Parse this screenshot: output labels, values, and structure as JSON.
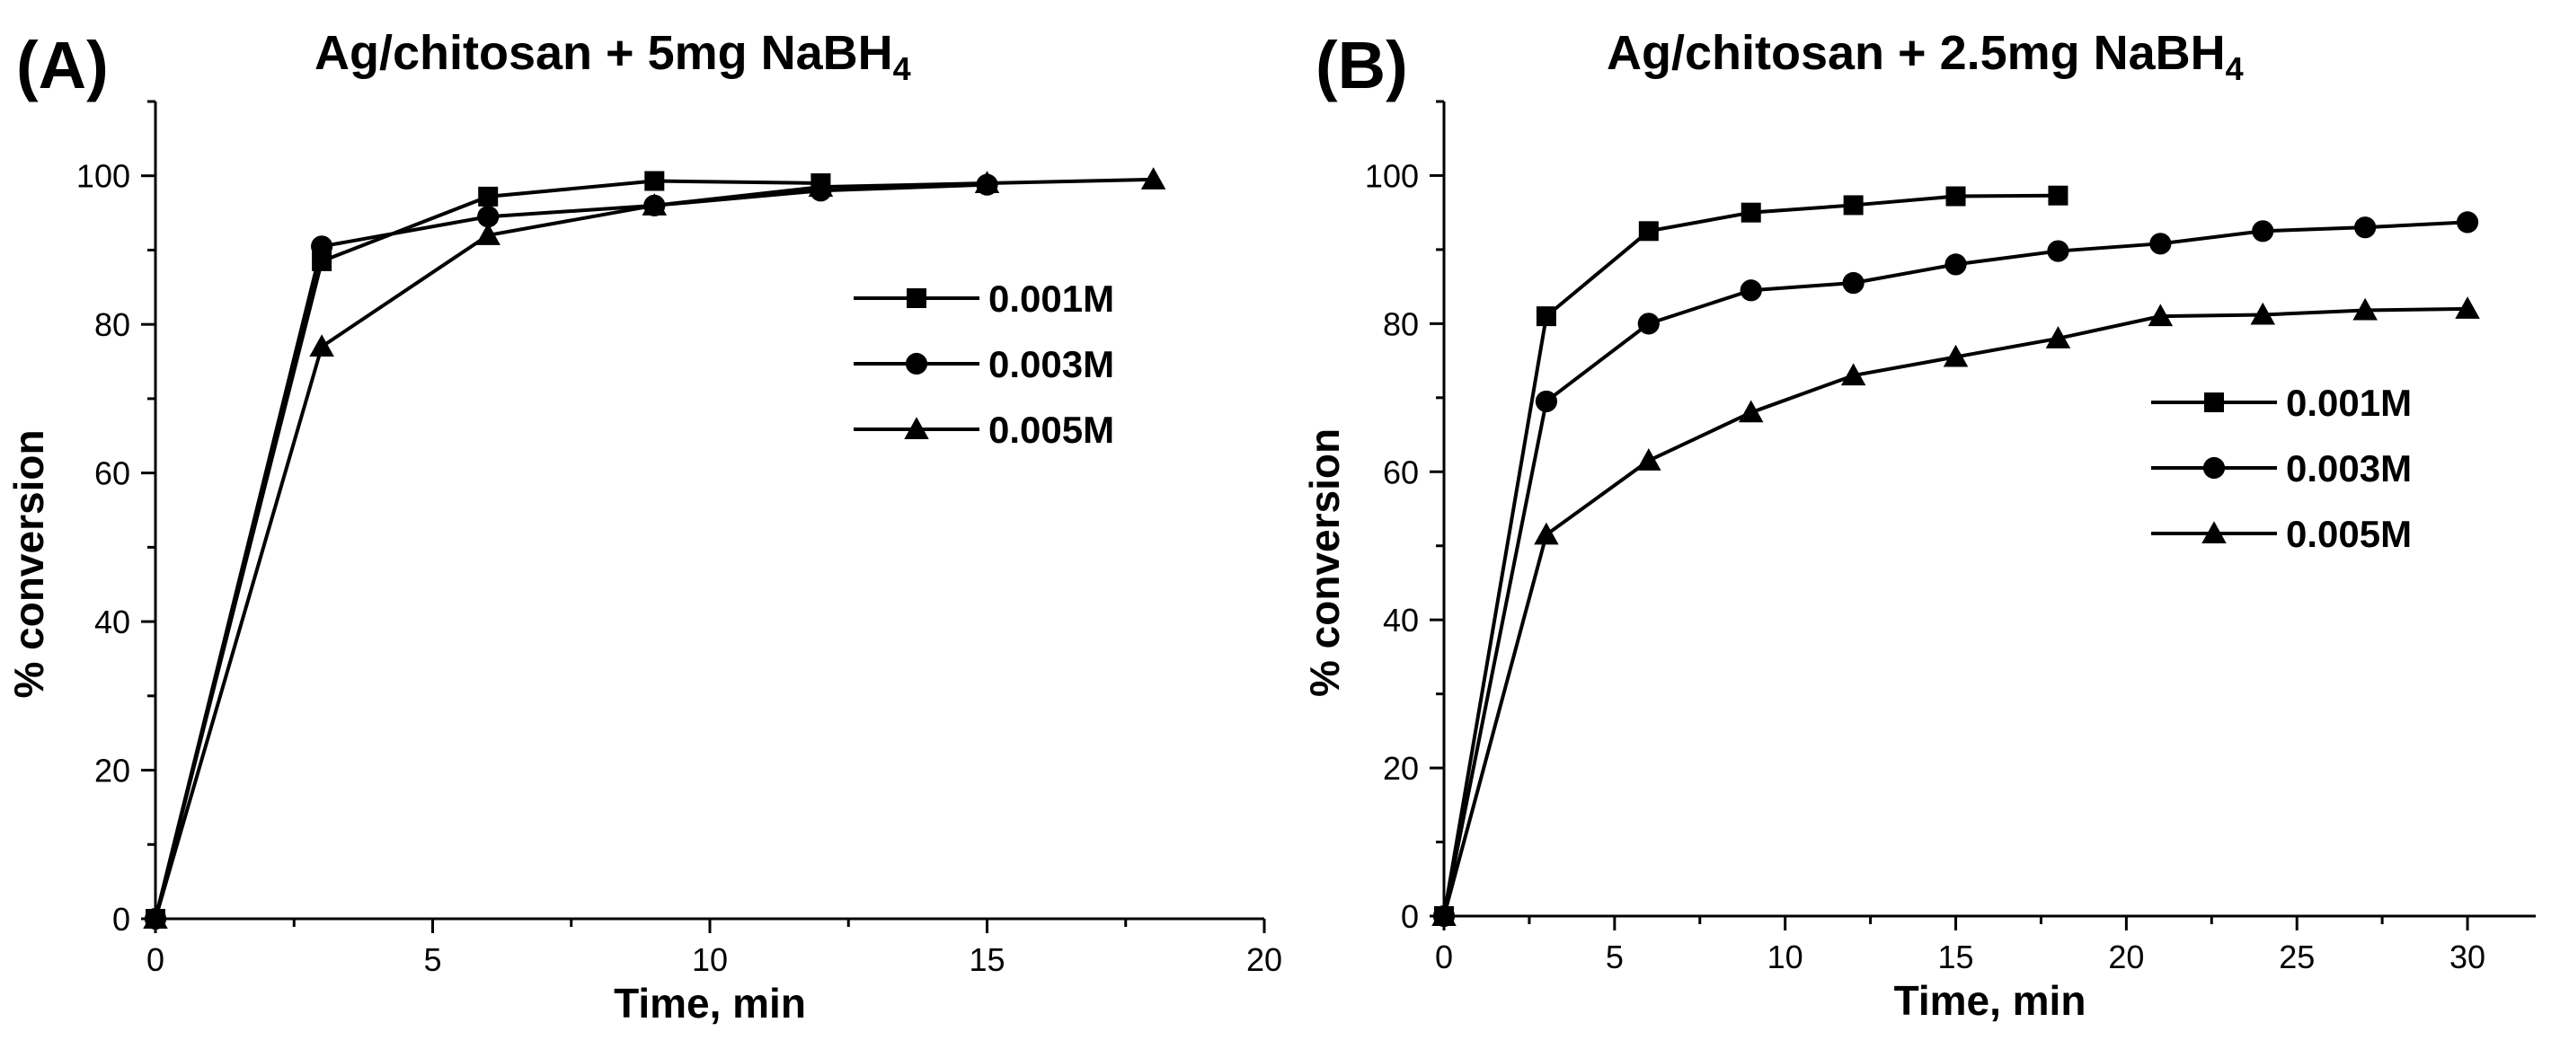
{
  "chart_data": [
    {
      "type": "line",
      "panel_label": "(A)",
      "title": "Ag/chitosan + 5mg NaBH",
      "title_subscript": "4",
      "xlabel": "Time, min",
      "ylabel": "% conversion",
      "xlim": [
        0,
        20
      ],
      "ylim": [
        0,
        110
      ],
      "xticks": [
        0,
        5,
        10,
        15,
        20
      ],
      "yticks": [
        0,
        20,
        40,
        60,
        80,
        100
      ],
      "legend_position": "center-right",
      "series": [
        {
          "name": "0.001M",
          "marker": "square",
          "x": [
            0,
            3,
            6,
            9,
            12
          ],
          "y": [
            0,
            88.5,
            97.2,
            99.3,
            99.0
          ]
        },
        {
          "name": "0.003M",
          "marker": "circle",
          "x": [
            0,
            3,
            6,
            9,
            12,
            15
          ],
          "y": [
            0,
            90.5,
            94.5,
            96.0,
            98.0,
            98.8
          ]
        },
        {
          "name": "0.005M",
          "marker": "triangle",
          "x": [
            0,
            3,
            6,
            9,
            12,
            15,
            18
          ],
          "y": [
            0,
            77.0,
            92.0,
            96.0,
            98.5,
            99.0,
            99.5
          ]
        }
      ]
    },
    {
      "type": "line",
      "panel_label": "(B)",
      "title": "Ag/chitosan + 2.5mg NaBH",
      "title_subscript": "4",
      "xlabel": "Time, min",
      "ylabel": "% conversion",
      "xlim": [
        0,
        32
      ],
      "ylim": [
        0,
        110
      ],
      "xticks": [
        0,
        5,
        10,
        15,
        20,
        25,
        30
      ],
      "yticks": [
        0,
        20,
        40,
        60,
        80,
        100
      ],
      "legend_position": "center-right",
      "series": [
        {
          "name": "0.001M",
          "marker": "square",
          "x": [
            0,
            3,
            6,
            9,
            12,
            15,
            18
          ],
          "y": [
            0,
            81.0,
            92.5,
            95.0,
            96.0,
            97.2,
            97.3
          ]
        },
        {
          "name": "0.003M",
          "marker": "circle",
          "x": [
            0,
            3,
            6,
            9,
            12,
            15,
            18,
            21,
            24,
            27,
            30
          ],
          "y": [
            0,
            69.5,
            80.0,
            84.5,
            85.5,
            88.0,
            89.8,
            90.8,
            92.5,
            93.0,
            93.7
          ]
        },
        {
          "name": "0.005M",
          "marker": "triangle",
          "x": [
            0,
            3,
            6,
            9,
            12,
            15,
            18,
            21,
            24,
            27,
            30
          ],
          "y": [
            0,
            51.5,
            61.5,
            68.0,
            73.0,
            75.5,
            78.0,
            81.0,
            81.2,
            81.8,
            82.0
          ]
        }
      ]
    }
  ]
}
